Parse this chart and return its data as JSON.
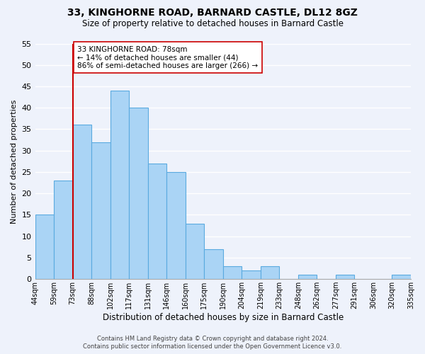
{
  "title": "33, KINGHORNE ROAD, BARNARD CASTLE, DL12 8GZ",
  "subtitle": "Size of property relative to detached houses in Barnard Castle",
  "xlabel": "Distribution of detached houses by size in Barnard Castle",
  "ylabel": "Number of detached properties",
  "footer_line1": "Contains HM Land Registry data © Crown copyright and database right 2024.",
  "footer_line2": "Contains public sector information licensed under the Open Government Licence v3.0.",
  "bin_labels": [
    "44sqm",
    "59sqm",
    "73sqm",
    "88sqm",
    "102sqm",
    "117sqm",
    "131sqm",
    "146sqm",
    "160sqm",
    "175sqm",
    "190sqm",
    "204sqm",
    "219sqm",
    "233sqm",
    "248sqm",
    "262sqm",
    "277sqm",
    "291sqm",
    "306sqm",
    "320sqm",
    "335sqm"
  ],
  "bar_values": [
    15,
    23,
    36,
    32,
    44,
    40,
    27,
    25,
    13,
    7,
    3,
    2,
    3,
    0,
    1,
    0,
    1,
    0,
    0,
    1
  ],
  "bar_color": "#aad4f5",
  "bar_edge_color": "#5aaae0",
  "ylim": [
    0,
    55
  ],
  "yticks": [
    0,
    5,
    10,
    15,
    20,
    25,
    30,
    35,
    40,
    45,
    50,
    55
  ],
  "property_line_x": 2.0,
  "property_line_color": "#cc0000",
  "annotation_text": "33 KINGHORNE ROAD: 78sqm\n← 14% of detached houses are smaller (44)\n86% of semi-detached houses are larger (266) →",
  "annotation_box_color": "#ffffff",
  "annotation_box_edge": "#cc0000",
  "background_color": "#eef2fb",
  "grid_color": "#ffffff"
}
